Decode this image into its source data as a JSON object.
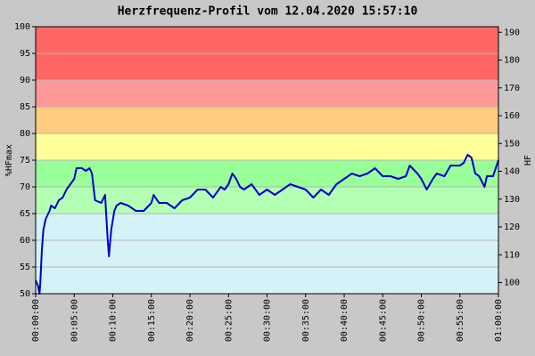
{
  "chart_data": {
    "type": "line",
    "title": "Herzfrequenz-Profil vom 12.04.2020 15:57:10",
    "ylabel": "%HFmax",
    "y2label": "HF",
    "color": "#0000cc",
    "grid": true,
    "xlim": [
      0,
      60
    ],
    "xticks": [
      {
        "value": 0,
        "label": "00:00:00"
      },
      {
        "value": 5,
        "label": "00:05:00"
      },
      {
        "value": 10,
        "label": "00:10:00"
      },
      {
        "value": 15,
        "label": "00:15:00"
      },
      {
        "value": 20,
        "label": "00:20:00"
      },
      {
        "value": 25,
        "label": "00:25:00"
      },
      {
        "value": 30,
        "label": "00:30:00"
      },
      {
        "value": 35,
        "label": "00:35:00"
      },
      {
        "value": 40,
        "label": "00:40:00"
      },
      {
        "value": 45,
        "label": "00:45:00"
      },
      {
        "value": 50,
        "label": "00:50:00"
      },
      {
        "value": 55,
        "label": "00:55:00"
      },
      {
        "value": 60,
        "label": "01:00:00"
      }
    ],
    "ylim": [
      50,
      100
    ],
    "yticks": [
      50,
      55,
      60,
      65,
      70,
      75,
      80,
      85,
      90,
      95,
      100
    ],
    "y2lim": [
      96,
      192
    ],
    "y2ticks": [
      100,
      110,
      120,
      130,
      140,
      150,
      160,
      170,
      180,
      190
    ],
    "bands": [
      {
        "from": 50,
        "to": 65,
        "color": "#d4f2f8"
      },
      {
        "from": 65,
        "to": 70,
        "color": "#b3ffb3"
      },
      {
        "from": 70,
        "to": 75,
        "color": "#99ff99"
      },
      {
        "from": 75,
        "to": 80,
        "color": "#ffff99"
      },
      {
        "from": 80,
        "to": 85,
        "color": "#ffcc80"
      },
      {
        "from": 85,
        "to": 90,
        "color": "#ff9999"
      },
      {
        "from": 90,
        "to": 100,
        "color": "#ff6666"
      }
    ],
    "x": [
      0,
      0.3,
      0.5,
      0.6,
      0.8,
      1,
      1.3,
      1.8,
      2,
      2.5,
      3,
      3.5,
      4,
      4.5,
      5,
      5.3,
      6,
      6.5,
      7,
      7.3,
      7.7,
      8.5,
      9,
      9.3,
      9.5,
      9.8,
      10.2,
      10.5,
      11,
      12,
      13,
      14,
      15,
      15.3,
      16,
      17,
      18,
      19,
      20,
      21,
      22,
      23,
      24,
      24.5,
      25,
      25.5,
      26,
      26.5,
      27,
      28,
      29,
      30,
      31,
      32,
      33,
      34,
      35,
      36,
      37,
      38,
      39,
      40,
      41,
      42,
      43,
      44,
      45,
      46,
      47,
      48,
      48.5,
      49.5,
      50,
      50.7,
      51.5,
      52,
      53,
      53.8,
      55,
      55.5,
      56,
      56.5,
      57,
      57.5,
      58.2,
      58.5,
      59.3,
      60
    ],
    "values": [
      52.5,
      51.5,
      50,
      52,
      58,
      62,
      64,
      65.5,
      66.5,
      66,
      67.5,
      68,
      69.5,
      70.5,
      71.5,
      73.5,
      73.5,
      73,
      73.5,
      72.5,
      67.5,
      67,
      68.5,
      61,
      57,
      62,
      65.5,
      66.5,
      67,
      66.5,
      65.5,
      65.5,
      67,
      68.5,
      67,
      67,
      66,
      67.5,
      68,
      69.5,
      69.5,
      68,
      70,
      69.5,
      70.5,
      72.5,
      71.5,
      70,
      69.5,
      70.5,
      68.5,
      69.5,
      68.5,
      69.5,
      70.5,
      70,
      69.5,
      68,
      69.5,
      68.5,
      70.5,
      71.5,
      72.5,
      72,
      72.5,
      73.5,
      72,
      72,
      71.5,
      72,
      74,
      72.5,
      71.5,
      69.5,
      71.5,
      72.5,
      72,
      74,
      74,
      74.5,
      76,
      75.5,
      72.5,
      72,
      70,
      72,
      72,
      75
    ]
  }
}
